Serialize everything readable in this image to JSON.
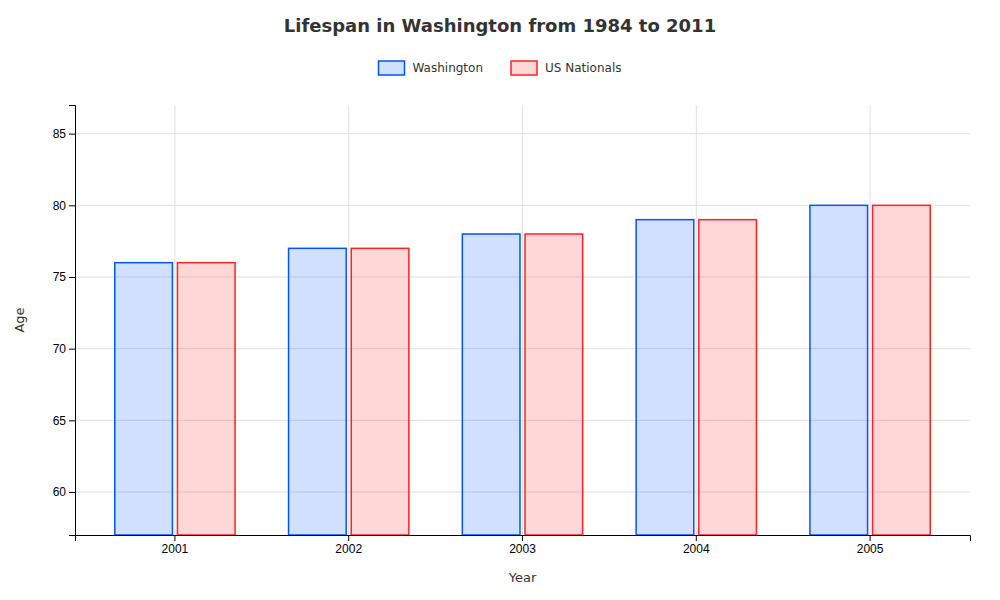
{
  "chart_data": {
    "type": "bar",
    "title": "Lifespan in Washington from 1984 to 2011",
    "xlabel": "Year",
    "ylabel": "Age",
    "categories": [
      "2001",
      "2002",
      "2003",
      "2004",
      "2005"
    ],
    "series": [
      {
        "name": "Washington",
        "color": "#0055ff",
        "values": [
          76,
          77,
          78,
          79,
          80
        ]
      },
      {
        "name": "US Nationals",
        "color": "#ff2222",
        "values": [
          76,
          77,
          78,
          79,
          80
        ]
      }
    ],
    "ylim": [
      57,
      87
    ],
    "yticks": [
      60,
      65,
      70,
      75,
      80,
      85
    ],
    "grid": true,
    "legend": "top"
  }
}
